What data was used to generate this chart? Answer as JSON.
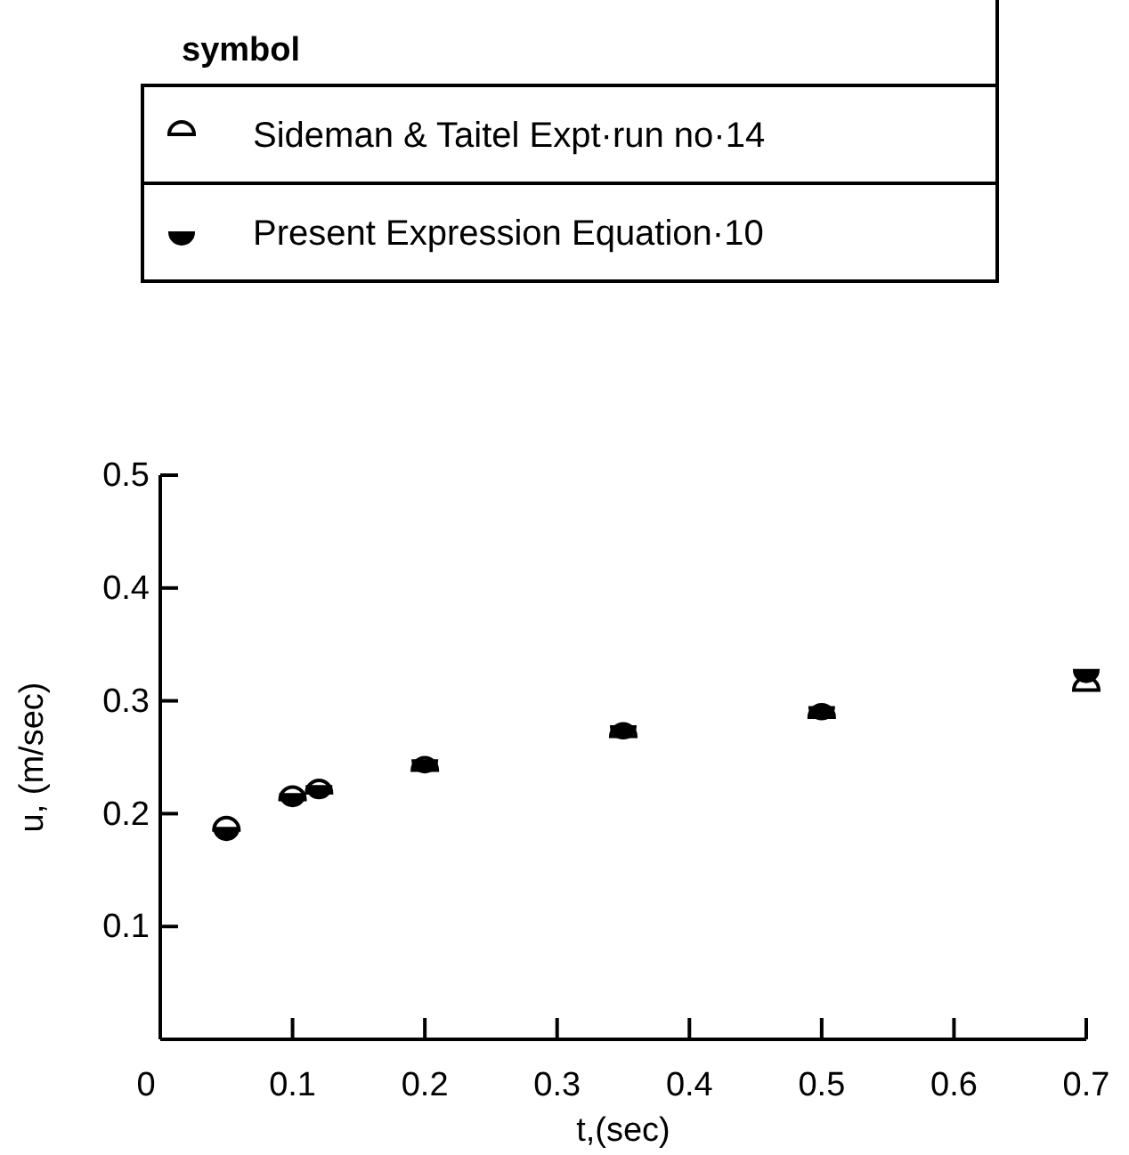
{
  "chart_data": {
    "type": "scatter",
    "xlabel": "t,(sec)",
    "ylabel": "u, (m/sec)",
    "legend_title": "symbol",
    "legend": "top",
    "xlim": [
      0,
      0.7
    ],
    "ylim": [
      0,
      0.5
    ],
    "xticks": [
      0,
      0.1,
      0.2,
      0.3,
      0.4,
      0.5,
      0.6,
      0.7
    ],
    "yticks": [
      0.1,
      0.2,
      0.3,
      0.4,
      0.5
    ],
    "grid": false,
    "series": [
      {
        "name": "Sideman & Taitel Expt·run no·14",
        "color": "#000000",
        "x": [
          0.05,
          0.1,
          0.12,
          0.2,
          0.35,
          0.5,
          0.7
        ],
        "values": [
          0.191,
          0.218,
          0.224,
          0.244,
          0.274,
          0.291,
          0.315
        ]
      },
      {
        "name": "Present Expression Equation·10",
        "color": "#000000",
        "x": [
          0.05,
          0.1,
          0.12,
          0.2,
          0.35,
          0.5,
          0.7
        ],
        "values": [
          0.182,
          0.212,
          0.219,
          0.242,
          0.272,
          0.289,
          0.322
        ]
      }
    ]
  }
}
